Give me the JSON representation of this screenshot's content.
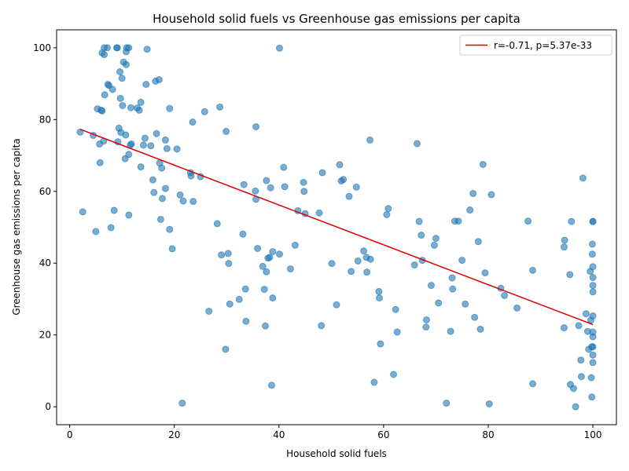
{
  "chart_data": {
    "type": "scatter",
    "title": "Household solid fuels vs Greenhouse gas emissions per capita",
    "xlabel": "Household solid fuels",
    "ylabel": "Greenhouse gas emissions per capita",
    "xlim": [
      -2.5,
      104.5
    ],
    "ylim": [
      -5,
      105
    ],
    "xticks": [
      0,
      20,
      40,
      60,
      80,
      100
    ],
    "yticks": [
      0,
      20,
      40,
      60,
      80,
      100
    ],
    "grid": false,
    "legend_position": "upper right",
    "series": [
      {
        "kind": "points",
        "color": "#1f77b4",
        "points": [
          [
            2,
            76.5
          ],
          [
            2.5,
            54.3
          ],
          [
            4.5,
            75.6
          ],
          [
            5,
            48.8
          ],
          [
            5.3,
            83
          ],
          [
            5.7,
            73.2
          ],
          [
            5.8,
            68
          ],
          [
            6,
            82.6
          ],
          [
            6.2,
            82.4
          ],
          [
            6.2,
            98.6
          ],
          [
            6.5,
            74
          ],
          [
            6.6,
            100
          ],
          [
            6.6,
            98.1
          ],
          [
            6.7,
            86.9
          ],
          [
            7.2,
            100
          ],
          [
            7.3,
            89.8
          ],
          [
            7.5,
            89.5
          ],
          [
            7.9,
            49.9
          ],
          [
            8.2,
            88.4
          ],
          [
            8.5,
            54.7
          ],
          [
            9,
            100
          ],
          [
            9.1,
            100
          ],
          [
            9.2,
            73.8
          ],
          [
            9.4,
            77.6
          ],
          [
            9.6,
            93.3
          ],
          [
            9.7,
            85.9
          ],
          [
            9.8,
            76.4
          ],
          [
            10,
            91.5
          ],
          [
            10.1,
            83.9
          ],
          [
            10.3,
            96
          ],
          [
            10.6,
            69.1
          ],
          [
            10.7,
            75.7
          ],
          [
            10.8,
            95.3
          ],
          [
            10.8,
            98.9
          ],
          [
            10.9,
            100
          ],
          [
            11.3,
            100
          ],
          [
            11.3,
            70.3
          ],
          [
            11.3,
            53.4
          ],
          [
            11.6,
            72.9
          ],
          [
            11.7,
            83.3
          ],
          [
            11.8,
            73.2
          ],
          [
            12.9,
            83.2
          ],
          [
            13.3,
            82.6
          ],
          [
            13.6,
            84.8
          ],
          [
            13.6,
            66.8
          ],
          [
            14.1,
            72.9
          ],
          [
            14.4,
            74.8
          ],
          [
            14.6,
            89.8
          ],
          [
            14.8,
            99.6
          ],
          [
            15.5,
            72.7
          ],
          [
            15.9,
            63.2
          ],
          [
            16.1,
            59.7
          ],
          [
            16.4,
            90.7
          ],
          [
            16.6,
            76.1
          ],
          [
            17.1,
            91.1
          ],
          [
            17.2,
            67.9
          ],
          [
            17.4,
            52.2
          ],
          [
            17.6,
            66.5
          ],
          [
            17.7,
            58
          ],
          [
            18.3,
            74.3
          ],
          [
            18.3,
            60.8
          ],
          [
            18.6,
            71.9
          ],
          [
            19.1,
            83.1
          ],
          [
            19.1,
            49.4
          ],
          [
            19.6,
            44
          ],
          [
            20.5,
            71.8
          ],
          [
            21.1,
            59
          ],
          [
            21.5,
            1
          ],
          [
            21.7,
            57.3
          ],
          [
            23.1,
            65.2
          ],
          [
            23.2,
            64.3
          ],
          [
            23.5,
            79.3
          ],
          [
            23.6,
            57.2
          ],
          [
            25,
            64.1
          ],
          [
            25.8,
            82.2
          ],
          [
            26.6,
            26.6
          ],
          [
            28.2,
            51
          ],
          [
            28.7,
            83.5
          ],
          [
            29,
            42.3
          ],
          [
            29.8,
            16
          ],
          [
            29.9,
            76.7
          ],
          [
            30.3,
            42.7
          ],
          [
            30.4,
            39.9
          ],
          [
            30.6,
            28.6
          ],
          [
            32.4,
            29.9
          ],
          [
            33.1,
            48.1
          ],
          [
            33.3,
            61.9
          ],
          [
            33.6,
            32.8
          ],
          [
            33.7,
            23.8
          ],
          [
            35.5,
            60.1
          ],
          [
            35.6,
            57.8
          ],
          [
            35.6,
            78
          ],
          [
            35.9,
            44.1
          ],
          [
            36.9,
            39.1
          ],
          [
            37.2,
            32.7
          ],
          [
            37.4,
            22.5
          ],
          [
            37.6,
            63
          ],
          [
            37.6,
            37.6
          ],
          [
            37.9,
            41.4
          ],
          [
            38.2,
            41.6
          ],
          [
            38.4,
            61
          ],
          [
            38.6,
            6
          ],
          [
            38.8,
            43.2
          ],
          [
            38.8,
            30.3
          ],
          [
            40.1,
            42.5
          ],
          [
            40.1,
            99.9
          ],
          [
            40.9,
            66.7
          ],
          [
            41.1,
            61.3
          ],
          [
            42.2,
            38.4
          ],
          [
            43.1,
            45
          ],
          [
            43.6,
            54.6
          ],
          [
            44.7,
            62.5
          ],
          [
            44.8,
            60
          ],
          [
            45,
            53.8
          ],
          [
            47.7,
            54
          ],
          [
            48.1,
            22.6
          ],
          [
            48.3,
            65.2
          ],
          [
            50.1,
            39.9
          ],
          [
            51,
            28.4
          ],
          [
            51.6,
            67.4
          ],
          [
            51.9,
            62.9
          ],
          [
            52.3,
            63.3
          ],
          [
            53.4,
            58.6
          ],
          [
            53.8,
            37.7
          ],
          [
            54.8,
            61.2
          ],
          [
            55.1,
            40.6
          ],
          [
            56.2,
            43.4
          ],
          [
            56.7,
            41.6
          ],
          [
            56.8,
            37.5
          ],
          [
            57.4,
            74.3
          ],
          [
            57.5,
            41.1
          ],
          [
            58.2,
            6.8
          ],
          [
            59.1,
            32.1
          ],
          [
            59.2,
            30.3
          ],
          [
            59.4,
            17.5
          ],
          [
            60.6,
            53.5
          ],
          [
            60.9,
            55.2
          ],
          [
            61.9,
            9
          ],
          [
            62.3,
            27.1
          ],
          [
            62.6,
            20.8
          ],
          [
            65.9,
            39.5
          ],
          [
            66.4,
            73.3
          ],
          [
            66.8,
            51.6
          ],
          [
            67.2,
            47.8
          ],
          [
            67.4,
            40.8
          ],
          [
            68.1,
            22.2
          ],
          [
            68.2,
            24.2
          ],
          [
            69.1,
            33.8
          ],
          [
            69.7,
            45
          ],
          [
            70,
            46.9
          ],
          [
            70.5,
            28.9
          ],
          [
            72,
            1
          ],
          [
            72.8,
            21
          ],
          [
            73.1,
            35.9
          ],
          [
            73.2,
            32.8
          ],
          [
            73.6,
            51.7
          ],
          [
            74.3,
            51.7
          ],
          [
            75,
            40.8
          ],
          [
            75.6,
            28.6
          ],
          [
            76.5,
            54.8
          ],
          [
            77.1,
            59.4
          ],
          [
            77.4,
            24.9
          ],
          [
            78.1,
            46
          ],
          [
            78.5,
            21.6
          ],
          [
            79,
            67.5
          ],
          [
            79.4,
            37.3
          ],
          [
            80.2,
            0.8
          ],
          [
            80.6,
            59.1
          ],
          [
            82.4,
            33
          ],
          [
            83.1,
            31
          ],
          [
            85.5,
            27.5
          ],
          [
            87.6,
            51.7
          ],
          [
            88.5,
            6.4
          ],
          [
            88.5,
            38
          ],
          [
            94.5,
            22
          ],
          [
            94.5,
            44.5
          ],
          [
            94.6,
            46.4
          ],
          [
            95.6,
            36.8
          ],
          [
            95.7,
            6.2
          ],
          [
            95.9,
            51.6
          ],
          [
            96.3,
            5.1
          ],
          [
            96.7,
            0
          ],
          [
            97.3,
            22.6
          ],
          [
            97.7,
            13
          ],
          [
            97.8,
            8.4
          ],
          [
            98.1,
            63.7
          ],
          [
            98.7,
            25.9
          ],
          [
            99,
            21
          ],
          [
            99.2,
            16
          ],
          [
            99.5,
            37.7
          ],
          [
            99.6,
            24.1
          ],
          [
            99.7,
            8.1
          ],
          [
            99.8,
            16.7
          ],
          [
            99.8,
            2.7
          ],
          [
            99.9,
            42.5
          ],
          [
            99.9,
            45.3
          ],
          [
            100,
            51.6
          ],
          [
            100,
            51.6
          ],
          [
            100,
            39
          ],
          [
            100,
            36
          ],
          [
            100,
            33.8
          ],
          [
            100,
            32
          ],
          [
            100,
            25.3
          ],
          [
            100,
            20.8
          ],
          [
            100,
            19.5
          ],
          [
            100,
            16.7
          ],
          [
            100,
            14.4
          ],
          [
            100,
            12.3
          ]
        ]
      },
      {
        "kind": "line",
        "name": "r=-0.71, p=5.37e-33",
        "color": "#dd0000",
        "points": [
          [
            2,
            77.3
          ],
          [
            100,
            22.9
          ]
        ]
      }
    ]
  }
}
